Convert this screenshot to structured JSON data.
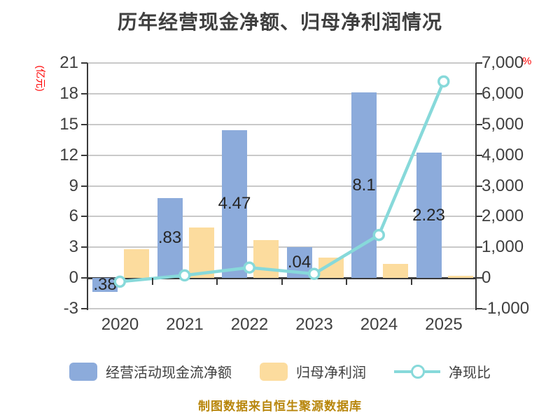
{
  "title": "历年经营现金净额、归母净利润情况",
  "footer_note": "制图数据来自恒生聚源数据库",
  "chart_data": {
    "type": "combo-bar-line",
    "categories": [
      "2020",
      "2021",
      "2022",
      "2023",
      "2024",
      "2025"
    ],
    "series": [
      {
        "name": "经营活动现金流净额",
        "type": "bar",
        "axis": "left",
        "color": "#8CABDB",
        "values": [
          -1.38,
          7.83,
          14.47,
          3.04,
          18.1,
          12.23
        ],
        "visible_value_labels": [
          ".38",
          ".83",
          "4.47",
          ".04",
          "8.1",
          "2.23"
        ]
      },
      {
        "name": "归母净利润",
        "type": "bar",
        "axis": "left",
        "color": "#FCDC9E",
        "values": [
          2.8,
          4.9,
          3.7,
          2.0,
          1.4,
          0.2
        ]
      },
      {
        "name": "净现比",
        "type": "line",
        "axis": "right",
        "color": "#87D9DA",
        "marker": "white-circle",
        "values": [
          -120,
          85,
          340,
          135,
          1400,
          6400
        ]
      }
    ],
    "left_axis": {
      "unit_label": "(亿元)",
      "unit_color": "#FF0000",
      "min": -3,
      "max": 21,
      "ticks": [
        "21",
        "18",
        "15",
        "12",
        "9",
        "6",
        "3",
        "0",
        "-3"
      ]
    },
    "right_axis": {
      "unit_label": "%",
      "unit_color": "#FF0000",
      "min": -1000,
      "max": 7000,
      "ticks": [
        "7,000",
        "6,000",
        "5,000",
        "4,000",
        "3,000",
        "2,000",
        "1,000",
        "0",
        "-1,000"
      ]
    },
    "grid": true,
    "legend_position": "bottom"
  },
  "colors": {
    "background": "#FFFFFF",
    "title_text": "#3F3F3F",
    "axis_text": "#404040",
    "grid_line": "#C9C9C9",
    "axis_line": "#3A3A3A",
    "bar_blue": "#8CABDB",
    "bar_yellow": "#FCDC9E",
    "line_teal": "#87D9DA",
    "bar_label_text": "#262626",
    "accent_red": "#FF0000",
    "footer_text": "#B8860B"
  }
}
